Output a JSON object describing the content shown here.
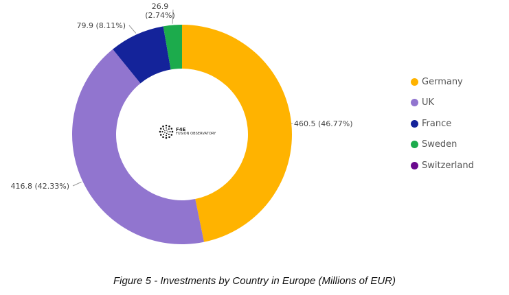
{
  "chart_data": {
    "type": "pie",
    "donut": true,
    "categories": [
      "Germany",
      "UK",
      "France",
      "Sweden",
      "Switzerland"
    ],
    "values": [
      460.5,
      416.8,
      79.9,
      26.9,
      0
    ],
    "labels": [
      "460.5 (46.77%)",
      "416.8 (42.33%)",
      "79.9 (8.11%)",
      "26.9 (2.74%)",
      ""
    ],
    "colors": [
      "#FFB300",
      "#9175CF",
      "#14239A",
      "#1CAB4C",
      "#6A0A8E"
    ],
    "legend_position": "right"
  },
  "logo": {
    "abbr": "F4E",
    "name": "FUSION OBSERVATORY"
  },
  "caption": "Figure 5 - Investments by Country in Europe (Millions of EUR)"
}
